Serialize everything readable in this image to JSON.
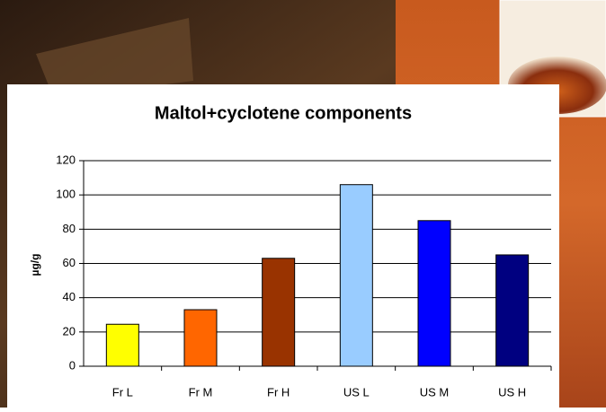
{
  "chart_data": {
    "type": "bar",
    "title": "Maltol+cyclotene components",
    "y_label": "µg/g",
    "categories": [
      "Fr L",
      "Fr M",
      "Fr H",
      "US L",
      "US M",
      "US H"
    ],
    "values": [
      24.5,
      33,
      63,
      106,
      85,
      65
    ],
    "colors": [
      "#ffff00",
      "#ff6600",
      "#993300",
      "#99ccff",
      "#0000ff",
      "#000080"
    ],
    "ylim": [
      0,
      120
    ],
    "yticks": [
      0,
      20,
      40,
      60,
      80,
      100,
      120
    ],
    "grid": true
  }
}
